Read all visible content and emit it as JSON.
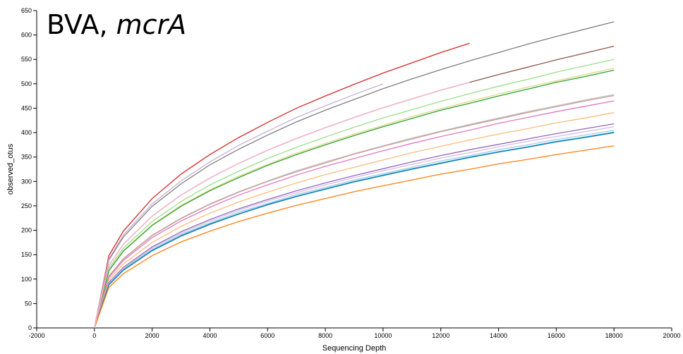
{
  "chart_data": {
    "type": "line",
    "title": "BVA,",
    "title_gene": "mcrA",
    "xlabel": "Sequencing Depth",
    "ylabel": "observed_otus",
    "x": [
      0,
      500,
      1000,
      2000,
      3000,
      4000,
      5000,
      6000,
      7000,
      8000,
      9000,
      10000,
      11000,
      12000,
      13000,
      14000,
      15000,
      16000,
      17000,
      18000
    ],
    "xlim": [
      -2000,
      20000
    ],
    "xticks": [
      -2000,
      0,
      2000,
      4000,
      6000,
      8000,
      10000,
      12000,
      14000,
      16000,
      18000,
      20000
    ],
    "ylim": [
      0,
      650
    ],
    "yticks": [
      0,
      50,
      100,
      150,
      200,
      250,
      300,
      350,
      400,
      450,
      500,
      550,
      600,
      650
    ],
    "grid": false,
    "series": [
      {
        "color": "#7f7f7f",
        "values": [
          0,
          139,
          186,
          249,
          295,
          334,
          366,
          395,
          422,
          446,
          468,
          490,
          510,
          529,
          547,
          564,
          581,
          597,
          612,
          627
        ]
      },
      {
        "color": "#8c564b",
        "values": [
          0,
          128,
          171,
          229,
          272,
          307,
          337,
          364,
          388,
          410,
          431,
          451,
          469,
          487,
          503,
          519,
          534,
          549,
          563,
          577
        ]
      },
      {
        "color": "#98df8a",
        "values": [
          0,
          122,
          163,
          218,
          259,
          293,
          321,
          347,
          370,
          391,
          411,
          430,
          447,
          464,
          480,
          495,
          509,
          524,
          537,
          550
        ]
      },
      {
        "color": "#dbdb8d",
        "values": [
          0,
          118,
          158,
          211,
          251,
          283,
          311,
          335,
          358,
          378,
          397,
          415,
          433,
          449,
          464,
          479,
          493,
          506,
          519,
          532
        ]
      },
      {
        "color": "#2ca02c",
        "values": [
          0,
          117,
          157,
          210,
          249,
          281,
          308,
          333,
          355,
          375,
          394,
          412,
          429,
          446,
          460,
          475,
          489,
          503,
          515,
          528
        ]
      },
      {
        "color": "#c7c7c7",
        "values": [
          0,
          106,
          142,
          190,
          225,
          254,
          279,
          301,
          322,
          340,
          357,
          373,
          389,
          403,
          417,
          430,
          443,
          455,
          467,
          478
        ]
      },
      {
        "color": "#c49c94",
        "values": [
          0,
          106,
          141,
          189,
          224,
          253,
          278,
          300,
          320,
          338,
          356,
          372,
          387,
          402,
          415,
          428,
          441,
          453,
          465,
          476
        ]
      },
      {
        "color": "#e377c2",
        "values": [
          0,
          103,
          138,
          185,
          219,
          247,
          272,
          293,
          313,
          331,
          347,
          363,
          378,
          392,
          405,
          419,
          431,
          443,
          454,
          465
        ]
      },
      {
        "color": "#ffbb78",
        "values": [
          0,
          98,
          131,
          175,
          208,
          235,
          258,
          278,
          297,
          314,
          329,
          344,
          359,
          372,
          385,
          397,
          408,
          420,
          430,
          441
        ]
      },
      {
        "color": "#9467bd",
        "values": [
          0,
          93,
          124,
          166,
          197,
          222,
          244,
          263,
          281,
          297,
          312,
          326,
          340,
          353,
          365,
          376,
          387,
          398,
          408,
          418
        ]
      },
      {
        "color": "#d0c0dc",
        "values": [
          0,
          91,
          122,
          164,
          194,
          219,
          241,
          260,
          277,
          293,
          308,
          322,
          335,
          348,
          359,
          371,
          382,
          392,
          402,
          412
        ]
      },
      {
        "color": "#aec7e8",
        "values": [
          0,
          90,
          120,
          161,
          191,
          215,
          237,
          255,
          273,
          288,
          303,
          316,
          329,
          342,
          353,
          365,
          375,
          386,
          395,
          405
        ]
      },
      {
        "color": "#17becf",
        "values": [
          0,
          89,
          119,
          159,
          189,
          213,
          234,
          253,
          270,
          285,
          300,
          313,
          326,
          338,
          350,
          361,
          371,
          382,
          391,
          401
        ]
      },
      {
        "color": "#1f77b4",
        "values": [
          0,
          88,
          118,
          158,
          188,
          212,
          233,
          252,
          269,
          284,
          299,
          312,
          325,
          337,
          349,
          360,
          370,
          381,
          390,
          400
        ]
      },
      {
        "color": "#ff7f0e",
        "values": [
          0,
          83,
          111,
          148,
          176,
          198,
          218,
          235,
          251,
          265,
          279,
          291,
          303,
          315,
          325,
          336,
          345,
          355,
          364,
          373
        ]
      },
      {
        "color": "#d62728",
        "values": [
          0,
          148,
          198,
          265,
          315,
          355,
          390,
          421,
          450,
          475,
          499,
          522,
          543,
          564,
          583,
          null,
          null,
          null,
          null,
          null
        ]
      },
      {
        "color": "#c5b0d5",
        "values": [
          0,
          142,
          190,
          254,
          301,
          340,
          374,
          403,
          431,
          455,
          478,
          500,
          null,
          null,
          null,
          null,
          null,
          null,
          null,
          null
        ]
      },
      {
        "color": "#f7b6d2",
        "values": [
          0,
          128,
          171,
          229,
          272,
          307,
          337,
          364,
          388,
          410,
          431,
          451,
          469,
          487,
          503,
          null,
          null,
          null,
          null,
          null
        ]
      }
    ]
  }
}
